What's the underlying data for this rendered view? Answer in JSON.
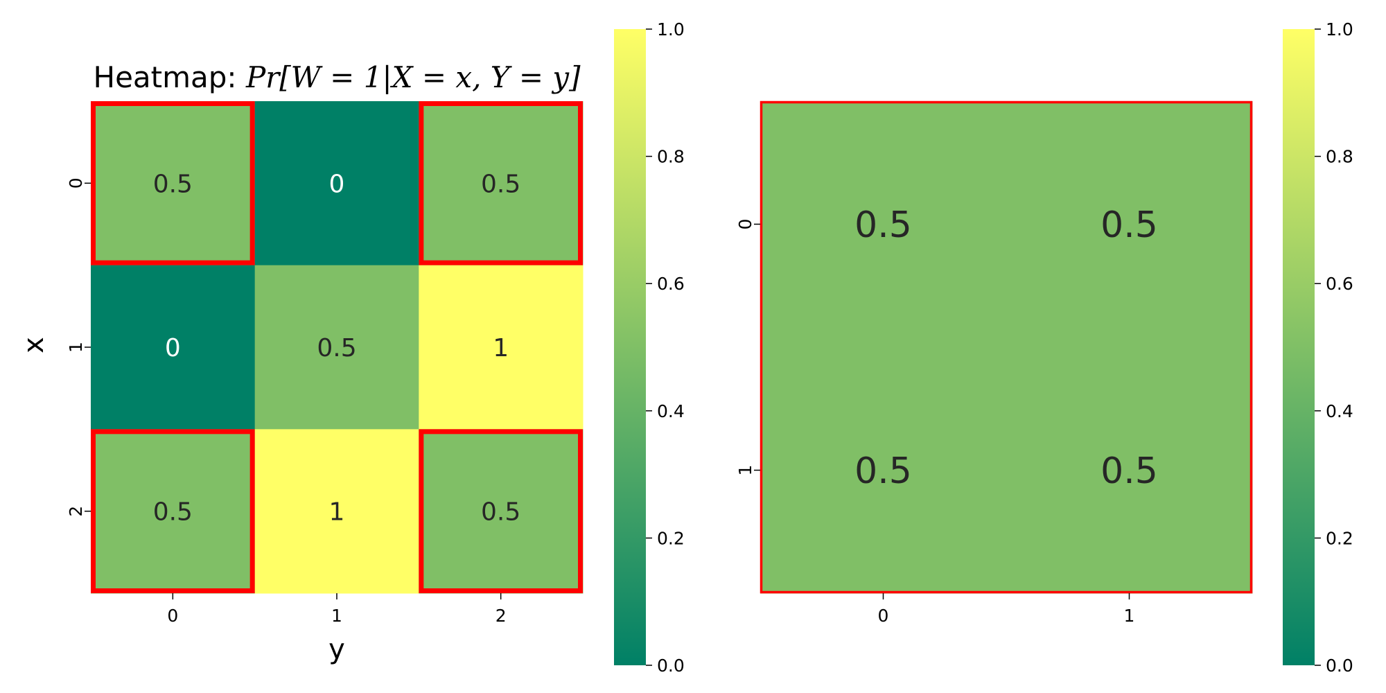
{
  "chart_data": [
    {
      "type": "heatmap",
      "title": "Heatmap: Pr[W = 1|X = x, Y = y]",
      "title_parts": {
        "prefix": "Heatmap: ",
        "math": "Pr[W = 1|X = x, Y = y]"
      },
      "xlabel": "y",
      "ylabel": "x",
      "x_categories": [
        "0",
        "1",
        "2"
      ],
      "y_categories": [
        "0",
        "1",
        "2"
      ],
      "values": [
        [
          0.5,
          0,
          0.5
        ],
        [
          0,
          0.5,
          1
        ],
        [
          0.5,
          1,
          0.5
        ]
      ],
      "cell_labels": [
        [
          "0.5",
          "0",
          "0.5"
        ],
        [
          "0",
          "0.5",
          "1"
        ],
        [
          "0.5",
          "1",
          "0.5"
        ]
      ],
      "highlighted_cells": [
        [
          0,
          0
        ],
        [
          0,
          2
        ],
        [
          2,
          0
        ],
        [
          2,
          2
        ]
      ],
      "highlight_color": "#ff0000",
      "colormap": "summer",
      "colorbar": {
        "range": [
          0.0,
          1.0
        ],
        "ticks": [
          "0.0",
          "0.2",
          "0.4",
          "0.6",
          "0.8",
          "1.0"
        ]
      }
    },
    {
      "type": "heatmap",
      "title": "",
      "xlabel": "",
      "ylabel": "",
      "x_categories": [
        "0",
        "1"
      ],
      "y_categories": [
        "0",
        "1"
      ],
      "values": [
        [
          0.5,
          0.5
        ],
        [
          0.5,
          0.5
        ]
      ],
      "cell_labels": [
        [
          "0.5",
          "0.5"
        ],
        [
          "0.5",
          "0.5"
        ]
      ],
      "highlighted_cells": "all",
      "highlight_color": "#ff0000",
      "colormap": "summer",
      "colorbar": {
        "range": [
          0.0,
          1.0
        ],
        "ticks": [
          "0.0",
          "0.2",
          "0.4",
          "0.6",
          "0.8",
          "1.0"
        ]
      }
    }
  ]
}
